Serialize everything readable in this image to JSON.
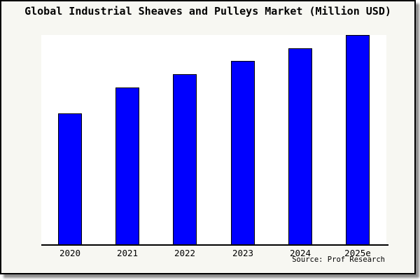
{
  "chart_data": {
    "type": "bar",
    "title": "Global Industrial Sheaves and Pulleys Market (Million USD)",
    "categories": [
      "2020",
      "2021",
      "2022",
      "2023",
      "2024",
      "2025e"
    ],
    "values": [
      62.7,
      75.0,
      81.3,
      87.7,
      93.7,
      100.0
    ],
    "value_note": "relative index estimated from bar heights; no y-axis tick labels shown in chart",
    "xlabel": "",
    "ylabel": "",
    "ylim": [
      0,
      100
    ],
    "grid": false,
    "legend": false,
    "bar_color": "#0000ff",
    "bar_edge_color": "#000000",
    "plot_background": "#ffffff",
    "panel_background": "#f7f7f2",
    "border_color": "#000000"
  },
  "source": {
    "label": "Source: Prof Research"
  }
}
